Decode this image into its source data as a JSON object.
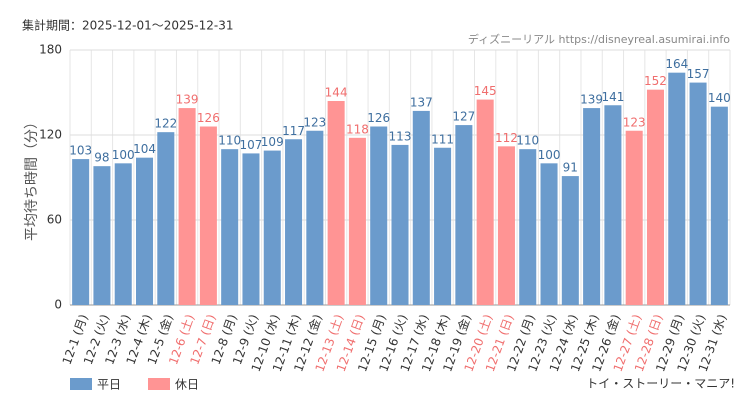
{
  "chart_data": {
    "type": "bar",
    "period": "集計期間：2025-12-01～2025-12-31",
    "source": "ディズニーリアル https://disneyreal.asumirai.info",
    "attraction": "トイ・ストーリー・マニア!",
    "y_label": "平均待ち時間（分）",
    "categories": [
      "12-1 (月)",
      "12-2 (火)",
      "12-3 (水)",
      "12-4 (木)",
      "12-5 (金)",
      "12-6 (土)",
      "12-7 (日)",
      "12-8 (月)",
      "12-9 (火)",
      "12-10 (水)",
      "12-11 (木)",
      "12-12 (金)",
      "12-13 (土)",
      "12-14 (日)",
      "12-15 (月)",
      "12-16 (火)",
      "12-17 (水)",
      "12-18 (木)",
      "12-19 (金)",
      "12-20 (土)",
      "12-21 (日)",
      "12-22 (月)",
      "12-23 (火)",
      "12-24 (水)",
      "12-25 (木)",
      "12-26 (金)",
      "12-27 (土)",
      "12-28 (日)",
      "12-29 (月)",
      "12-30 (火)",
      "12-31 (水)"
    ],
    "series": [
      {
        "name": "平日",
        "color": "#6b9bcc",
        "label_color": "#3f6f9f",
        "values": [
          103,
          98,
          100,
          104,
          122,
          null,
          null,
          110,
          107,
          109,
          117,
          123,
          null,
          null,
          126,
          113,
          137,
          111,
          127,
          null,
          null,
          110,
          100,
          91,
          139,
          141,
          null,
          null,
          164,
          157,
          140
        ]
      },
      {
        "name": "休日",
        "color": "#ff9494",
        "label_color": "#f06e6e",
        "values": [
          null,
          null,
          null,
          null,
          null,
          139,
          126,
          null,
          null,
          null,
          null,
          null,
          144,
          118,
          null,
          null,
          null,
          null,
          null,
          145,
          112,
          null,
          null,
          null,
          null,
          null,
          123,
          152,
          null,
          null,
          null
        ]
      }
    ],
    "ylim": [
      0,
      180
    ],
    "yticks": [
      0,
      60,
      120,
      180
    ],
    "grid": true
  }
}
